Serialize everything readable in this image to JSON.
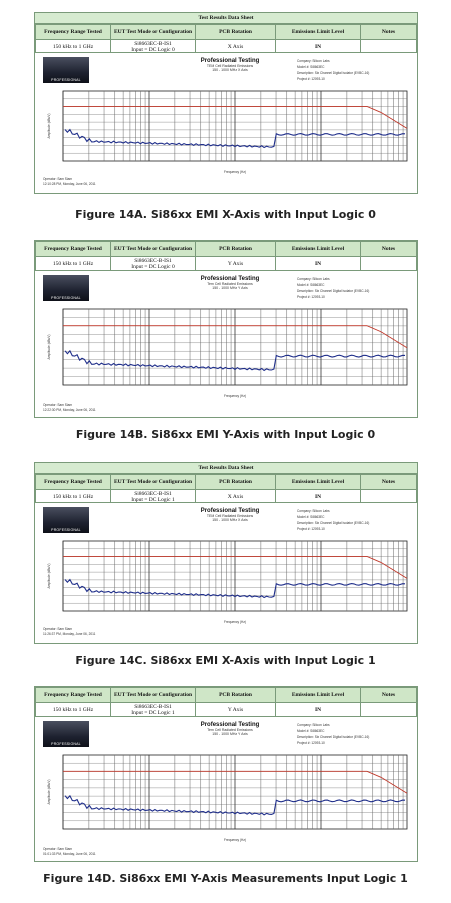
{
  "figures": [
    {
      "table_title": "Test Results Data Sheet",
      "headers": [
        "Frequency Range Tested",
        "EUT Test Mode or Configuration",
        "PCB Rotation",
        "Emissions Limit Level",
        "Notes"
      ],
      "row": {
        "freq": "150 kHz to 1 GHz",
        "mode_line1": "Si8663EC-B-IS1",
        "mode_line2": "Input = DC Logic 0",
        "rotation": "X Axis",
        "limit": "IN",
        "notes": ""
      },
      "plot_title": "Professional Testing",
      "plot_subtitle1": "TEM Cell Radiated Emissions",
      "plot_subtitle2": "150 - 1000 MHz X Axis",
      "logo_text": "PROFESSIONAL",
      "info": [
        "Company: Silicon Labs",
        "Model #: Si8663EC",
        "Description: Six Channel Digital Isolator (EVBC-16)",
        "Project #: 12093-10"
      ],
      "footer": [
        "Operator: Sam Siam",
        "12:10:28 PM, Monday, June 06, 2011"
      ],
      "xaxis_label": "Frequency (Hz)",
      "yaxis_label": "Amplitude (dBuV)",
      "caption": "Figure 14A. Si86xx EMI X-Axis with Input Logic 0",
      "has_table_title": true
    },
    {
      "table_title": "",
      "headers": [
        "Frequency Range Tested",
        "EUT Test Mode or Configuration",
        "PCB Rotation",
        "Emissions Limit Level",
        "Notes"
      ],
      "row": {
        "freq": "150 kHz to 1 GHz",
        "mode_line1": "Si8663EC-B-IS1",
        "mode_line2": "Input = DC Logic 0",
        "rotation": "Y Axis",
        "limit": "IN",
        "notes": ""
      },
      "plot_title": "Professional Testing",
      "plot_subtitle1": "Tem Cell Radiated Emissions",
      "plot_subtitle2": "150 - 1000 MHz Y Axis",
      "logo_text": "PROFESSIONAL",
      "info": [
        "Company: Silicon Labs",
        "Model #: Si8663EC",
        "Description: Six Channel Digital Isolator (EVBC-16)",
        "Project #: 12093-10"
      ],
      "footer": [
        "Operator: Sam Siam",
        "12:22:30 PM, Monday, June 06, 2011"
      ],
      "xaxis_label": "Frequency (Hz)",
      "yaxis_label": "Amplitude (dBuV)",
      "caption": "Figure 14B. Si86xx EMI Y-Axis with Input Logic 0",
      "has_table_title": false
    },
    {
      "table_title": "Test Results Data Sheet",
      "headers": [
        "Frequency Range Tested",
        "EUT Test Mode or Configuration",
        "PCB Rotation",
        "Emissions Limit Level",
        "Notes"
      ],
      "row": {
        "freq": "150 kHz to 1 GHz",
        "mode_line1": "Si8663EC-B-IS1",
        "mode_line2": "Input = DC Logic 1",
        "rotation": "X Axis",
        "limit": "IN",
        "notes": ""
      },
      "plot_title": "Professional Testing",
      "plot_subtitle1": "TEM Cell Radiated Emissions",
      "plot_subtitle2": "150 - 1000 MHz X Axis",
      "logo_text": "PROFESSIONAL",
      "info": [
        "Company: Silicon Labs",
        "Model #: Si8663EC",
        "Description: Six Channel Digital Isolator (EVBC-16)",
        "Project #: 12093-10"
      ],
      "footer": [
        "Operator: Sam Siam",
        "11:26:37 PM, Monday, June 06, 2011"
      ],
      "xaxis_label": "Frequency (Hz)",
      "yaxis_label": "Amplitude (dBuV)",
      "caption": "Figure 14C. Si86xx EMI X-Axis with Input Logic 1",
      "has_table_title": true
    },
    {
      "table_title": "",
      "headers": [
        "Frequency Range Tested",
        "EUT Test Mode or Configuration",
        "PCB Rotation",
        "Emissions Limit Level",
        "Notes"
      ],
      "row": {
        "freq": "150 kHz to 1 GHz",
        "mode_line1": "Si8663EC-B-IS1",
        "mode_line2": "Input = DC Logic 1",
        "rotation": "Y Axis",
        "limit": "IN",
        "notes": ""
      },
      "plot_title": "Professional Testing",
      "plot_subtitle1": "Tem Cell Radiated Emissions",
      "plot_subtitle2": "150 - 1000 MHz Y Axis",
      "logo_text": "PROFESSIONAL",
      "info": [
        "Company: Silicon Labs",
        "Model #: Si8663EC",
        "Description: Six Channel Digital Isolator (EVBC-16)",
        "Project #: 12093-10"
      ],
      "footer": [
        "Operator: Sam Siam",
        "01:01:33 PM, Monday, June 06, 2011"
      ],
      "xaxis_label": "Frequency (Hz)",
      "yaxis_label": "Amplitude (dBuV)",
      "caption": "Figure 14D. Si86xx EMI Y-Axis Measurements Input Logic 1",
      "has_table_title": false
    }
  ],
  "colors": {
    "table_header_bg": "#cfe6c7",
    "limit_line": "#c0392b",
    "trace": "#1f2e8a",
    "grid": "#555555"
  }
}
